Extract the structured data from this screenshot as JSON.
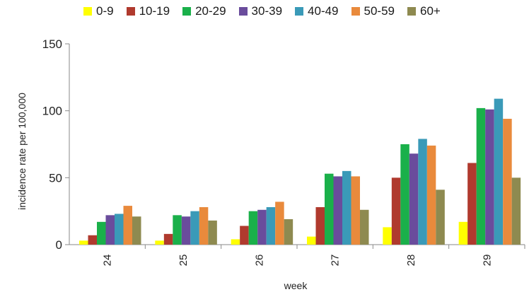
{
  "chart_data": {
    "type": "bar",
    "categories": [
      "24",
      "25",
      "26",
      "27",
      "28",
      "29"
    ],
    "series": [
      {
        "name": "0-9",
        "color": "#ffff00",
        "values": [
          3,
          3,
          4,
          6,
          13,
          17
        ]
      },
      {
        "name": "10-19",
        "color": "#b03a2e",
        "values": [
          7,
          8,
          14,
          28,
          50,
          61
        ]
      },
      {
        "name": "20-29",
        "color": "#1ab04a",
        "values": [
          17,
          22,
          25,
          53,
          75,
          102
        ]
      },
      {
        "name": "30-39",
        "color": "#6a4c9c",
        "values": [
          22,
          21,
          26,
          51,
          68,
          101
        ]
      },
      {
        "name": "40-49",
        "color": "#3a9ab8",
        "values": [
          23,
          25,
          28,
          55,
          79,
          109
        ]
      },
      {
        "name": "50-59",
        "color": "#e98a3c",
        "values": [
          29,
          28,
          32,
          51,
          74,
          94
        ]
      },
      {
        "name": "60+",
        "color": "#8e8a50",
        "values": [
          21,
          18,
          19,
          26,
          41,
          50
        ]
      }
    ],
    "xlabel": "week",
    "ylabel": "incidence rate per 100,000",
    "yticks": [
      "0",
      "50",
      "100",
      "150"
    ],
    "ylim": [
      0,
      150
    ],
    "grid": false,
    "legend_position": "top"
  }
}
